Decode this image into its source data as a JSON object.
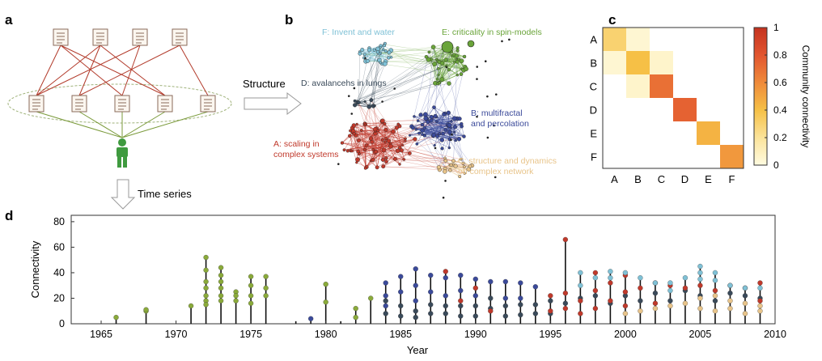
{
  "panel_labels": {
    "a": "a",
    "b": "b",
    "c": "c",
    "d": "d"
  },
  "panel_a": {
    "structure_label": "Structure",
    "time_series_label": "Time series",
    "colors": {
      "arrow_red": "#b23a2a",
      "arrow_green": "#7a9a3a",
      "person": "#3f9a3f",
      "ellipse": "#9fb27a"
    },
    "icons": {
      "document": "document-icon",
      "person": "person-icon",
      "arrow": "hollow-arrow-icon"
    }
  },
  "panel_b": {
    "communities": [
      {
        "id": "A",
        "label_lines": [
          "A: scaling in",
          "complex systems"
        ],
        "color": "#c0392b"
      },
      {
        "id": "B",
        "label_lines": [
          "B: multifractal",
          "and percolation"
        ],
        "color": "#3b4a9a"
      },
      {
        "id": "C",
        "label_lines": [
          "C: structure and dynamics",
          "on complex network"
        ],
        "color": "#e8c48a"
      },
      {
        "id": "D",
        "label_lines": [
          "D: avalancehs in lungs"
        ],
        "color": "#3a4a5a"
      },
      {
        "id": "E",
        "label_lines": [
          "E: criticality in spin-models"
        ],
        "color": "#6aa43a"
      },
      {
        "id": "F",
        "label_lines": [
          "F: Invent and water"
        ],
        "color": "#7fc1d6"
      }
    ]
  },
  "panel_c": {
    "row_labels": [
      "A",
      "B",
      "C",
      "D",
      "E",
      "F"
    ],
    "col_labels": [
      "A",
      "B",
      "C",
      "D",
      "E",
      "F"
    ],
    "colorbar_label": "Community connectivity",
    "colorbar_ticks": [
      "0",
      "0.2",
      "0.4",
      "0.6",
      "0.8",
      "1"
    ],
    "colorscale": [
      "#fffbe0",
      "#fbe39a",
      "#f6c046",
      "#ef8a3a",
      "#e2552f",
      "#c4321f"
    ]
  },
  "chart_data": [
    {
      "type": "heatmap",
      "rows": [
        "A",
        "B",
        "C",
        "D",
        "E",
        "F"
      ],
      "cols": [
        "A",
        "B",
        "C",
        "D",
        "E",
        "F"
      ],
      "values": [
        [
          0.3,
          0.04,
          0.0,
          0.0,
          0.0,
          0.0
        ],
        [
          0.04,
          0.4,
          0.06,
          0.0,
          0.0,
          0.0
        ],
        [
          0.0,
          0.06,
          0.7,
          0.0,
          0.0,
          0.0
        ],
        [
          0.0,
          0.0,
          0.0,
          0.75,
          0.0,
          0.0
        ],
        [
          0.0,
          0.0,
          0.0,
          0.0,
          0.45,
          0.0
        ],
        [
          0.0,
          0.0,
          0.0,
          0.0,
          0.0,
          0.55
        ]
      ],
      "zlim": [
        0,
        1
      ],
      "colorbar_label": "Community connectivity"
    },
    {
      "type": "scatter",
      "xlabel": "Year",
      "ylabel": "Connectivity",
      "xlim": [
        1963,
        2010
      ],
      "ylim": [
        0,
        85
      ],
      "xticks": [
        1965,
        1970,
        1975,
        1980,
        1985,
        1990,
        1995,
        2000,
        2005,
        2010
      ],
      "yticks": [
        0,
        20,
        40,
        60,
        80
      ],
      "grid": false,
      "series": [
        {
          "color": "#8aaa3a",
          "points": [
            [
              1966,
              5
            ],
            [
              1968,
              10
            ],
            [
              1968,
              11
            ],
            [
              1971,
              14
            ],
            [
              1972,
              52
            ],
            [
              1972,
              42
            ],
            [
              1972,
              33
            ],
            [
              1972,
              28
            ],
            [
              1972,
              22
            ],
            [
              1972,
              18
            ],
            [
              1972,
              15
            ],
            [
              1973,
              44
            ],
            [
              1973,
              38
            ],
            [
              1973,
              33
            ],
            [
              1973,
              28
            ],
            [
              1973,
              22
            ],
            [
              1973,
              18
            ],
            [
              1974,
              25
            ],
            [
              1974,
              22
            ],
            [
              1974,
              18
            ],
            [
              1975,
              37
            ],
            [
              1975,
              30
            ],
            [
              1975,
              22
            ],
            [
              1975,
              16
            ],
            [
              1976,
              37
            ],
            [
              1976,
              28
            ],
            [
              1976,
              22
            ],
            [
              1980,
              31
            ],
            [
              1980,
              17
            ],
            [
              1982,
              12
            ],
            [
              1983,
              20
            ],
            [
              1982,
              5
            ]
          ]
        },
        {
          "color": "#3b4a9a",
          "points": [
            [
              1979,
              4
            ],
            [
              1984,
              32
            ],
            [
              1984,
              22
            ],
            [
              1984,
              14
            ],
            [
              1985,
              37
            ],
            [
              1985,
              25
            ],
            [
              1986,
              43
            ],
            [
              1986,
              30
            ],
            [
              1986,
              18
            ],
            [
              1987,
              38
            ],
            [
              1987,
              25
            ],
            [
              1988,
              36
            ],
            [
              1988,
              22
            ],
            [
              1989,
              38
            ],
            [
              1989,
              26
            ],
            [
              1990,
              35
            ],
            [
              1990,
              22
            ],
            [
              1991,
              33
            ],
            [
              1992,
              33
            ],
            [
              1992,
              20
            ],
            [
              1993,
              32
            ],
            [
              1993,
              20
            ],
            [
              1994,
              29
            ]
          ]
        },
        {
          "color": "#3a4a5a",
          "points": [
            [
              1984,
              18
            ],
            [
              1984,
              8
            ],
            [
              1985,
              14
            ],
            [
              1985,
              6
            ],
            [
              1986,
              10
            ],
            [
              1986,
              5
            ],
            [
              1987,
              15
            ],
            [
              1987,
              8
            ],
            [
              1988,
              14
            ],
            [
              1988,
              8
            ],
            [
              1989,
              14
            ],
            [
              1989,
              6
            ],
            [
              1990,
              14
            ],
            [
              1990,
              6
            ],
            [
              1991,
              20
            ],
            [
              1991,
              12
            ],
            [
              1992,
              14
            ],
            [
              1992,
              6
            ],
            [
              1993,
              15
            ],
            [
              1993,
              7
            ],
            [
              1994,
              15
            ],
            [
              1994,
              8
            ],
            [
              1995,
              18
            ],
            [
              1995,
              8
            ],
            [
              1996,
              16
            ],
            [
              1997,
              20
            ],
            [
              1998,
              22
            ],
            [
              1999,
              16
            ],
            [
              2000,
              22
            ],
            [
              2001,
              18
            ],
            [
              2002,
              24
            ],
            [
              2003,
              18
            ],
            [
              2004,
              26
            ],
            [
              2005,
              22
            ],
            [
              2006,
              18
            ],
            [
              2007,
              24
            ],
            [
              2008,
              22
            ],
            [
              2009,
              20
            ]
          ]
        },
        {
          "color": "#c0392b",
          "points": [
            [
              1988,
              41
            ],
            [
              1989,
              18
            ],
            [
              1990,
              28
            ],
            [
              1991,
              10
            ],
            [
              1995,
              22
            ],
            [
              1995,
              10
            ],
            [
              1996,
              66
            ],
            [
              1996,
              24
            ],
            [
              1996,
              12
            ],
            [
              1997,
              18
            ],
            [
              1997,
              8
            ],
            [
              1998,
              40
            ],
            [
              1998,
              26
            ],
            [
              1998,
              12
            ],
            [
              1999,
              32
            ],
            [
              1999,
              18
            ],
            [
              2000,
              38
            ],
            [
              2000,
              25
            ],
            [
              2000,
              14
            ],
            [
              2001,
              28
            ],
            [
              2002,
              32
            ],
            [
              2002,
              16
            ],
            [
              2003,
              30
            ],
            [
              2004,
              28
            ],
            [
              2005,
              30
            ],
            [
              2006,
              26
            ],
            [
              2007,
              30
            ],
            [
              2008,
              28
            ],
            [
              2009,
              32
            ],
            [
              2009,
              18
            ]
          ]
        },
        {
          "color": "#7fc1d6",
          "points": [
            [
              1997,
              40
            ],
            [
              1997,
              30
            ],
            [
              1998,
              36
            ],
            [
              1999,
              41
            ],
            [
              1999,
              36
            ],
            [
              2000,
              40
            ],
            [
              2001,
              36
            ],
            [
              2002,
              32
            ],
            [
              2003,
              32
            ],
            [
              2003,
              26
            ],
            [
              2004,
              36
            ],
            [
              2005,
              45
            ],
            [
              2005,
              40
            ],
            [
              2005,
              35
            ],
            [
              2006,
              40
            ],
            [
              2006,
              34
            ],
            [
              2007,
              30
            ],
            [
              2008,
              28
            ],
            [
              2009,
              28
            ]
          ]
        },
        {
          "color": "#e8c48a",
          "points": [
            [
              2000,
              8
            ],
            [
              2001,
              10
            ],
            [
              2002,
              12
            ],
            [
              2003,
              14
            ],
            [
              2004,
              16
            ],
            [
              2005,
              20
            ],
            [
              2005,
              12
            ],
            [
              2006,
              22
            ],
            [
              2006,
              10
            ],
            [
              2007,
              18
            ],
            [
              2007,
              12
            ],
            [
              2008,
              16
            ],
            [
              2008,
              8
            ],
            [
              2009,
              14
            ],
            [
              2009,
              10
            ]
          ]
        }
      ],
      "stems": [
        [
          1966,
          0,
          5
        ],
        [
          1968,
          0,
          11
        ],
        [
          1971,
          0,
          14
        ],
        [
          1972,
          0,
          52
        ],
        [
          1973,
          0,
          44
        ],
        [
          1974,
          0,
          25
        ],
        [
          1975,
          0,
          37
        ],
        [
          1976,
          0,
          37
        ],
        [
          1978,
          0,
          2
        ],
        [
          1979,
          0,
          4
        ],
        [
          1980,
          0,
          31
        ],
        [
          1981,
          0,
          2
        ],
        [
          1982,
          0,
          12
        ],
        [
          1983,
          0,
          20
        ],
        [
          1984,
          0,
          32
        ],
        [
          1985,
          0,
          37
        ],
        [
          1986,
          0,
          43
        ],
        [
          1987,
          0,
          38
        ],
        [
          1988,
          0,
          41
        ],
        [
          1989,
          0,
          38
        ],
        [
          1990,
          0,
          35
        ],
        [
          1991,
          0,
          33
        ],
        [
          1992,
          0,
          33
        ],
        [
          1993,
          0,
          32
        ],
        [
          1994,
          0,
          29
        ],
        [
          1995,
          0,
          22
        ],
        [
          1996,
          0,
          66
        ],
        [
          1997,
          0,
          40
        ],
        [
          1998,
          0,
          40
        ],
        [
          1999,
          0,
          41
        ],
        [
          2000,
          0,
          40
        ],
        [
          2001,
          0,
          36
        ],
        [
          2002,
          0,
          32
        ],
        [
          2003,
          0,
          32
        ],
        [
          2004,
          0,
          36
        ],
        [
          2005,
          0,
          45
        ],
        [
          2006,
          0,
          40
        ],
        [
          2007,
          0,
          30
        ],
        [
          2008,
          0,
          28
        ],
        [
          2009,
          0,
          32
        ]
      ]
    }
  ]
}
